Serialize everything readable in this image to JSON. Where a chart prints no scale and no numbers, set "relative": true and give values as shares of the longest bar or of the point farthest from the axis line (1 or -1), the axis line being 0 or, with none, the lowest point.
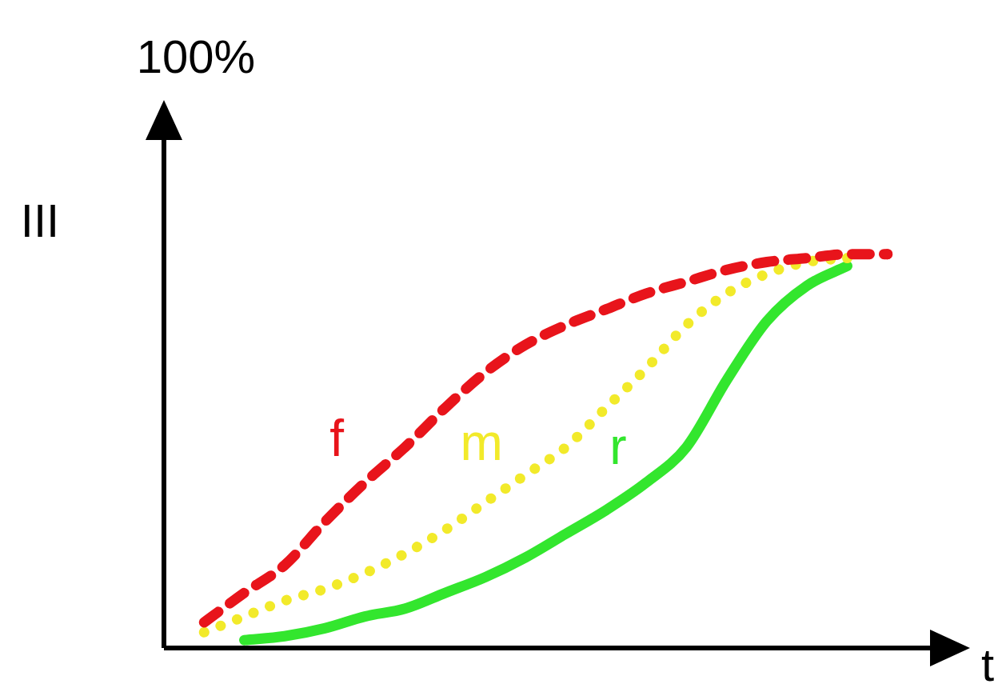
{
  "chart_data": {
    "type": "line",
    "relative": true,
    "xlabel": "t",
    "ylabel": "III",
    "annotations": [
      "100%"
    ],
    "legend": false,
    "grid": false,
    "marker": "none",
    "categories": [
      null,
      null,
      null,
      null,
      null,
      null,
      null,
      null,
      null,
      null,
      null,
      null,
      null,
      null,
      null,
      null,
      null,
      null,
      null,
      null
    ],
    "series": [
      {
        "name": "f",
        "color": "#e8141b",
        "line_style": "dashed",
        "values": [
          null,
          0.065,
          0.14,
          0.21,
          0.32,
          0.42,
          0.51,
          0.61,
          0.7,
          0.77,
          0.82,
          0.86,
          0.9,
          0.93,
          0.96,
          0.98,
          0.99,
          1.0,
          1.0,
          null
        ]
      },
      {
        "name": "m",
        "color": "#f2ea2a",
        "line_style": "dotted",
        "values": [
          null,
          0.04,
          0.08,
          0.12,
          0.15,
          0.19,
          0.24,
          0.3,
          0.37,
          0.44,
          0.51,
          0.61,
          0.71,
          0.82,
          0.9,
          0.95,
          0.98,
          0.99,
          null,
          null
        ]
      },
      {
        "name": "r",
        "color": "#33e62e",
        "line_style": "solid",
        "values": [
          null,
          null,
          0.02,
          0.03,
          0.05,
          0.08,
          0.1,
          0.14,
          0.18,
          0.23,
          0.29,
          0.35,
          0.42,
          0.51,
          0.68,
          0.83,
          0.92,
          0.97,
          null,
          null
        ]
      }
    ]
  }
}
